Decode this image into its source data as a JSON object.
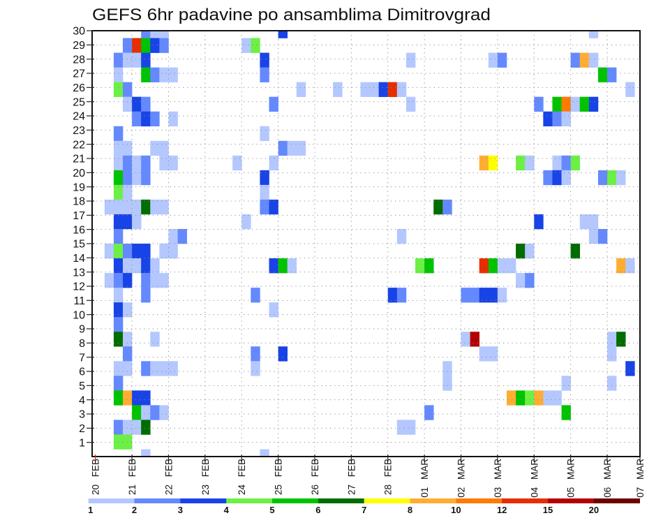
{
  "chart_data": {
    "type": "heatmap",
    "title": "GEFS 6hr padavine po ansamblima Dimitrovgrad",
    "xlabel": "",
    "ylabel": "",
    "grid": true,
    "x": {
      "tick_labels": [
        "20 FEB",
        "21 FEB",
        "22 FEB",
        "23 FEB",
        "24 FEB",
        "25 FEB",
        "26 FEB",
        "27 FEB",
        "28 FEB",
        "01 MAR",
        "02 MAR",
        "03 MAR",
        "04 MAR",
        "05 MAR",
        "06 MAR",
        "07 MAR"
      ],
      "xlim_days": [
        0,
        15
      ],
      "step_hours": 6,
      "n_steps": 60,
      "first_tick_color": "#e02020"
    },
    "y": {
      "tick_labels": [
        "1",
        "2",
        "3",
        "4",
        "5",
        "6",
        "7",
        "8",
        "9",
        "10",
        "11",
        "12",
        "13",
        "14",
        "15",
        "16",
        "17",
        "18",
        "19",
        "20",
        "21",
        "22",
        "23",
        "24",
        "25",
        "26",
        "27",
        "28",
        "29",
        "30"
      ],
      "ylim": [
        0,
        30
      ],
      "cell_member_range": [
        1,
        30
      ]
    },
    "colorbar": {
      "placement": "bottom",
      "labels": [
        "1",
        "2",
        "3",
        "4",
        "5",
        "6",
        "7",
        "8",
        "10",
        "12",
        "15",
        "20"
      ],
      "colors": [
        "#b4c8ff",
        "#6489ff",
        "#1843e6",
        "#6cf046",
        "#00c300",
        "#006d00",
        "#ffff00",
        "#ffad32",
        "#ff7a00",
        "#e62e00",
        "#b40000",
        "#6e0000"
      ]
    },
    "cells_format": [
      "step",
      "member",
      "bin"
    ],
    "cells": [
      [
        5,
        30,
        1
      ],
      [
        6,
        30,
        0
      ],
      [
        7,
        30,
        0
      ],
      [
        3,
        29,
        1
      ],
      [
        4,
        29,
        9
      ],
      [
        5,
        29,
        4
      ],
      [
        6,
        29,
        2
      ],
      [
        7,
        29,
        1
      ],
      [
        2,
        28,
        1
      ],
      [
        3,
        28,
        0
      ],
      [
        4,
        28,
        0
      ],
      [
        5,
        28,
        2
      ],
      [
        2,
        27,
        0
      ],
      [
        5,
        27,
        4
      ],
      [
        6,
        27,
        1
      ],
      [
        7,
        27,
        0
      ],
      [
        8,
        27,
        0
      ],
      [
        2,
        26,
        3
      ],
      [
        3,
        26,
        1
      ],
      [
        3,
        25,
        0
      ],
      [
        4,
        25,
        2
      ],
      [
        5,
        25,
        1
      ],
      [
        4,
        24,
        1
      ],
      [
        5,
        24,
        2
      ],
      [
        6,
        24,
        1
      ],
      [
        8,
        24,
        0
      ],
      [
        2,
        23,
        1
      ],
      [
        2,
        22,
        0
      ],
      [
        3,
        22,
        0
      ],
      [
        6,
        22,
        0
      ],
      [
        7,
        22,
        0
      ],
      [
        2,
        21,
        0
      ],
      [
        3,
        21,
        1
      ],
      [
        4,
        21,
        0
      ],
      [
        5,
        21,
        1
      ],
      [
        7,
        21,
        0
      ],
      [
        8,
        21,
        0
      ],
      [
        2,
        20,
        4
      ],
      [
        3,
        20,
        1
      ],
      [
        4,
        20,
        0
      ],
      [
        5,
        20,
        1
      ],
      [
        2,
        19,
        3
      ],
      [
        3,
        19,
        0
      ],
      [
        1,
        18,
        0
      ],
      [
        2,
        18,
        0
      ],
      [
        3,
        18,
        0
      ],
      [
        4,
        18,
        0
      ],
      [
        5,
        18,
        5
      ],
      [
        6,
        18,
        0
      ],
      [
        7,
        18,
        0
      ],
      [
        2,
        17,
        2
      ],
      [
        3,
        17,
        2
      ],
      [
        4,
        17,
        0
      ],
      [
        2,
        16,
        1
      ],
      [
        8,
        16,
        0
      ],
      [
        9,
        16,
        1
      ],
      [
        1,
        15,
        0
      ],
      [
        2,
        15,
        3
      ],
      [
        3,
        15,
        1
      ],
      [
        4,
        15,
        2
      ],
      [
        5,
        15,
        2
      ],
      [
        7,
        15,
        0
      ],
      [
        8,
        15,
        0
      ],
      [
        2,
        14,
        2
      ],
      [
        3,
        14,
        0
      ],
      [
        4,
        14,
        0
      ],
      [
        5,
        14,
        2
      ],
      [
        6,
        14,
        0
      ],
      [
        1,
        13,
        0
      ],
      [
        2,
        13,
        1
      ],
      [
        3,
        13,
        2
      ],
      [
        5,
        13,
        1
      ],
      [
        6,
        13,
        0
      ],
      [
        7,
        13,
        0
      ],
      [
        2,
        12,
        0
      ],
      [
        5,
        12,
        1
      ],
      [
        2,
        11,
        2
      ],
      [
        3,
        11,
        0
      ],
      [
        2,
        10,
        1
      ],
      [
        2,
        9,
        5
      ],
      [
        3,
        9,
        0
      ],
      [
        6,
        9,
        0
      ],
      [
        3,
        8,
        1
      ],
      [
        2,
        7,
        0
      ],
      [
        3,
        7,
        0
      ],
      [
        5,
        7,
        1
      ],
      [
        6,
        7,
        0
      ],
      [
        7,
        7,
        0
      ],
      [
        8,
        7,
        0
      ],
      [
        2,
        6,
        1
      ],
      [
        2,
        5,
        4
      ],
      [
        3,
        5,
        7
      ],
      [
        4,
        5,
        2
      ],
      [
        5,
        5,
        2
      ],
      [
        4,
        4,
        4
      ],
      [
        5,
        4,
        0
      ],
      [
        6,
        4,
        1
      ],
      [
        7,
        4,
        0
      ],
      [
        2,
        3,
        1
      ],
      [
        3,
        3,
        0
      ],
      [
        4,
        3,
        0
      ],
      [
        5,
        3,
        5
      ],
      [
        2,
        2,
        3
      ],
      [
        3,
        2,
        3
      ],
      [
        5,
        1,
        0
      ],
      [
        20,
        30,
        2
      ],
      [
        16,
        29,
        0
      ],
      [
        17,
        29,
        3
      ],
      [
        18,
        28,
        2
      ],
      [
        18,
        27,
        1
      ],
      [
        22,
        26,
        0
      ],
      [
        26,
        26,
        0
      ],
      [
        19,
        25,
        1
      ],
      [
        18,
        23,
        0
      ],
      [
        20,
        22,
        1
      ],
      [
        21,
        22,
        0
      ],
      [
        22,
        22,
        0
      ],
      [
        15,
        21,
        0
      ],
      [
        19,
        21,
        0
      ],
      [
        18,
        20,
        2
      ],
      [
        18,
        19,
        0
      ],
      [
        18,
        18,
        1
      ],
      [
        19,
        18,
        2
      ],
      [
        16,
        17,
        0
      ],
      [
        19,
        14,
        2
      ],
      [
        20,
        14,
        4
      ],
      [
        21,
        14,
        0
      ],
      [
        17,
        12,
        1
      ],
      [
        19,
        11,
        0
      ],
      [
        17,
        8,
        1
      ],
      [
        20,
        8,
        2
      ],
      [
        17,
        7,
        0
      ],
      [
        18,
        1,
        0
      ],
      [
        29,
        26,
        0
      ],
      [
        30,
        26,
        0
      ],
      [
        31,
        26,
        2
      ],
      [
        32,
        26,
        9
      ],
      [
        33,
        26,
        0
      ],
      [
        34,
        28,
        0
      ],
      [
        34,
        25,
        0
      ],
      [
        42,
        21,
        7
      ],
      [
        43,
        21,
        6
      ],
      [
        46,
        21,
        3
      ],
      [
        47,
        21,
        0
      ],
      [
        50,
        21,
        0
      ],
      [
        51,
        21,
        1
      ],
      [
        52,
        21,
        3
      ],
      [
        37,
        18,
        5
      ],
      [
        38,
        18,
        1
      ],
      [
        33,
        16,
        0
      ],
      [
        35,
        14,
        3
      ],
      [
        36,
        14,
        4
      ],
      [
        32,
        12,
        2
      ],
      [
        33,
        12,
        1
      ],
      [
        40,
        12,
        1
      ],
      [
        41,
        12,
        1
      ],
      [
        42,
        12,
        2
      ],
      [
        43,
        12,
        2
      ],
      [
        44,
        12,
        0
      ],
      [
        40,
        9,
        0
      ],
      [
        41,
        9,
        10
      ],
      [
        42,
        8,
        0
      ],
      [
        43,
        8,
        0
      ],
      [
        38,
        7,
        0
      ],
      [
        38,
        6,
        0
      ],
      [
        36,
        4,
        1
      ],
      [
        33,
        3,
        0
      ],
      [
        34,
        3,
        0
      ],
      [
        54,
        30,
        0
      ],
      [
        43,
        28,
        0
      ],
      [
        44,
        28,
        1
      ],
      [
        52,
        28,
        1
      ],
      [
        53,
        28,
        7
      ],
      [
        54,
        28,
        0
      ],
      [
        55,
        27,
        4
      ],
      [
        56,
        27,
        1
      ],
      [
        58,
        26,
        0
      ],
      [
        48,
        25,
        1
      ],
      [
        50,
        25,
        4
      ],
      [
        51,
        25,
        8
      ],
      [
        52,
        25,
        0
      ],
      [
        53,
        25,
        4
      ],
      [
        54,
        25,
        2
      ],
      [
        49,
        24,
        2
      ],
      [
        50,
        24,
        1
      ],
      [
        51,
        24,
        0
      ],
      [
        49,
        20,
        1
      ],
      [
        50,
        20,
        2
      ],
      [
        51,
        20,
        0
      ],
      [
        55,
        20,
        1
      ],
      [
        56,
        20,
        3
      ],
      [
        57,
        20,
        0
      ],
      [
        48,
        17,
        2
      ],
      [
        53,
        17,
        0
      ],
      [
        54,
        17,
        0
      ],
      [
        54,
        16,
        0
      ],
      [
        55,
        16,
        1
      ],
      [
        46,
        15,
        5
      ],
      [
        47,
        15,
        0
      ],
      [
        52,
        15,
        5
      ],
      [
        42,
        14,
        9
      ],
      [
        43,
        14,
        4
      ],
      [
        44,
        14,
        0
      ],
      [
        45,
        14,
        0
      ],
      [
        57,
        14,
        7
      ],
      [
        58,
        14,
        0
      ],
      [
        46,
        13,
        0
      ],
      [
        47,
        13,
        1
      ],
      [
        56,
        9,
        0
      ],
      [
        57,
        9,
        5
      ],
      [
        56,
        8,
        0
      ],
      [
        58,
        7,
        2
      ],
      [
        51,
        6,
        0
      ],
      [
        56,
        6,
        0
      ],
      [
        45,
        5,
        7
      ],
      [
        46,
        5,
        4
      ],
      [
        47,
        5,
        3
      ],
      [
        48,
        5,
        7
      ],
      [
        49,
        5,
        0
      ],
      [
        50,
        5,
        0
      ],
      [
        51,
        4,
        4
      ]
    ]
  }
}
